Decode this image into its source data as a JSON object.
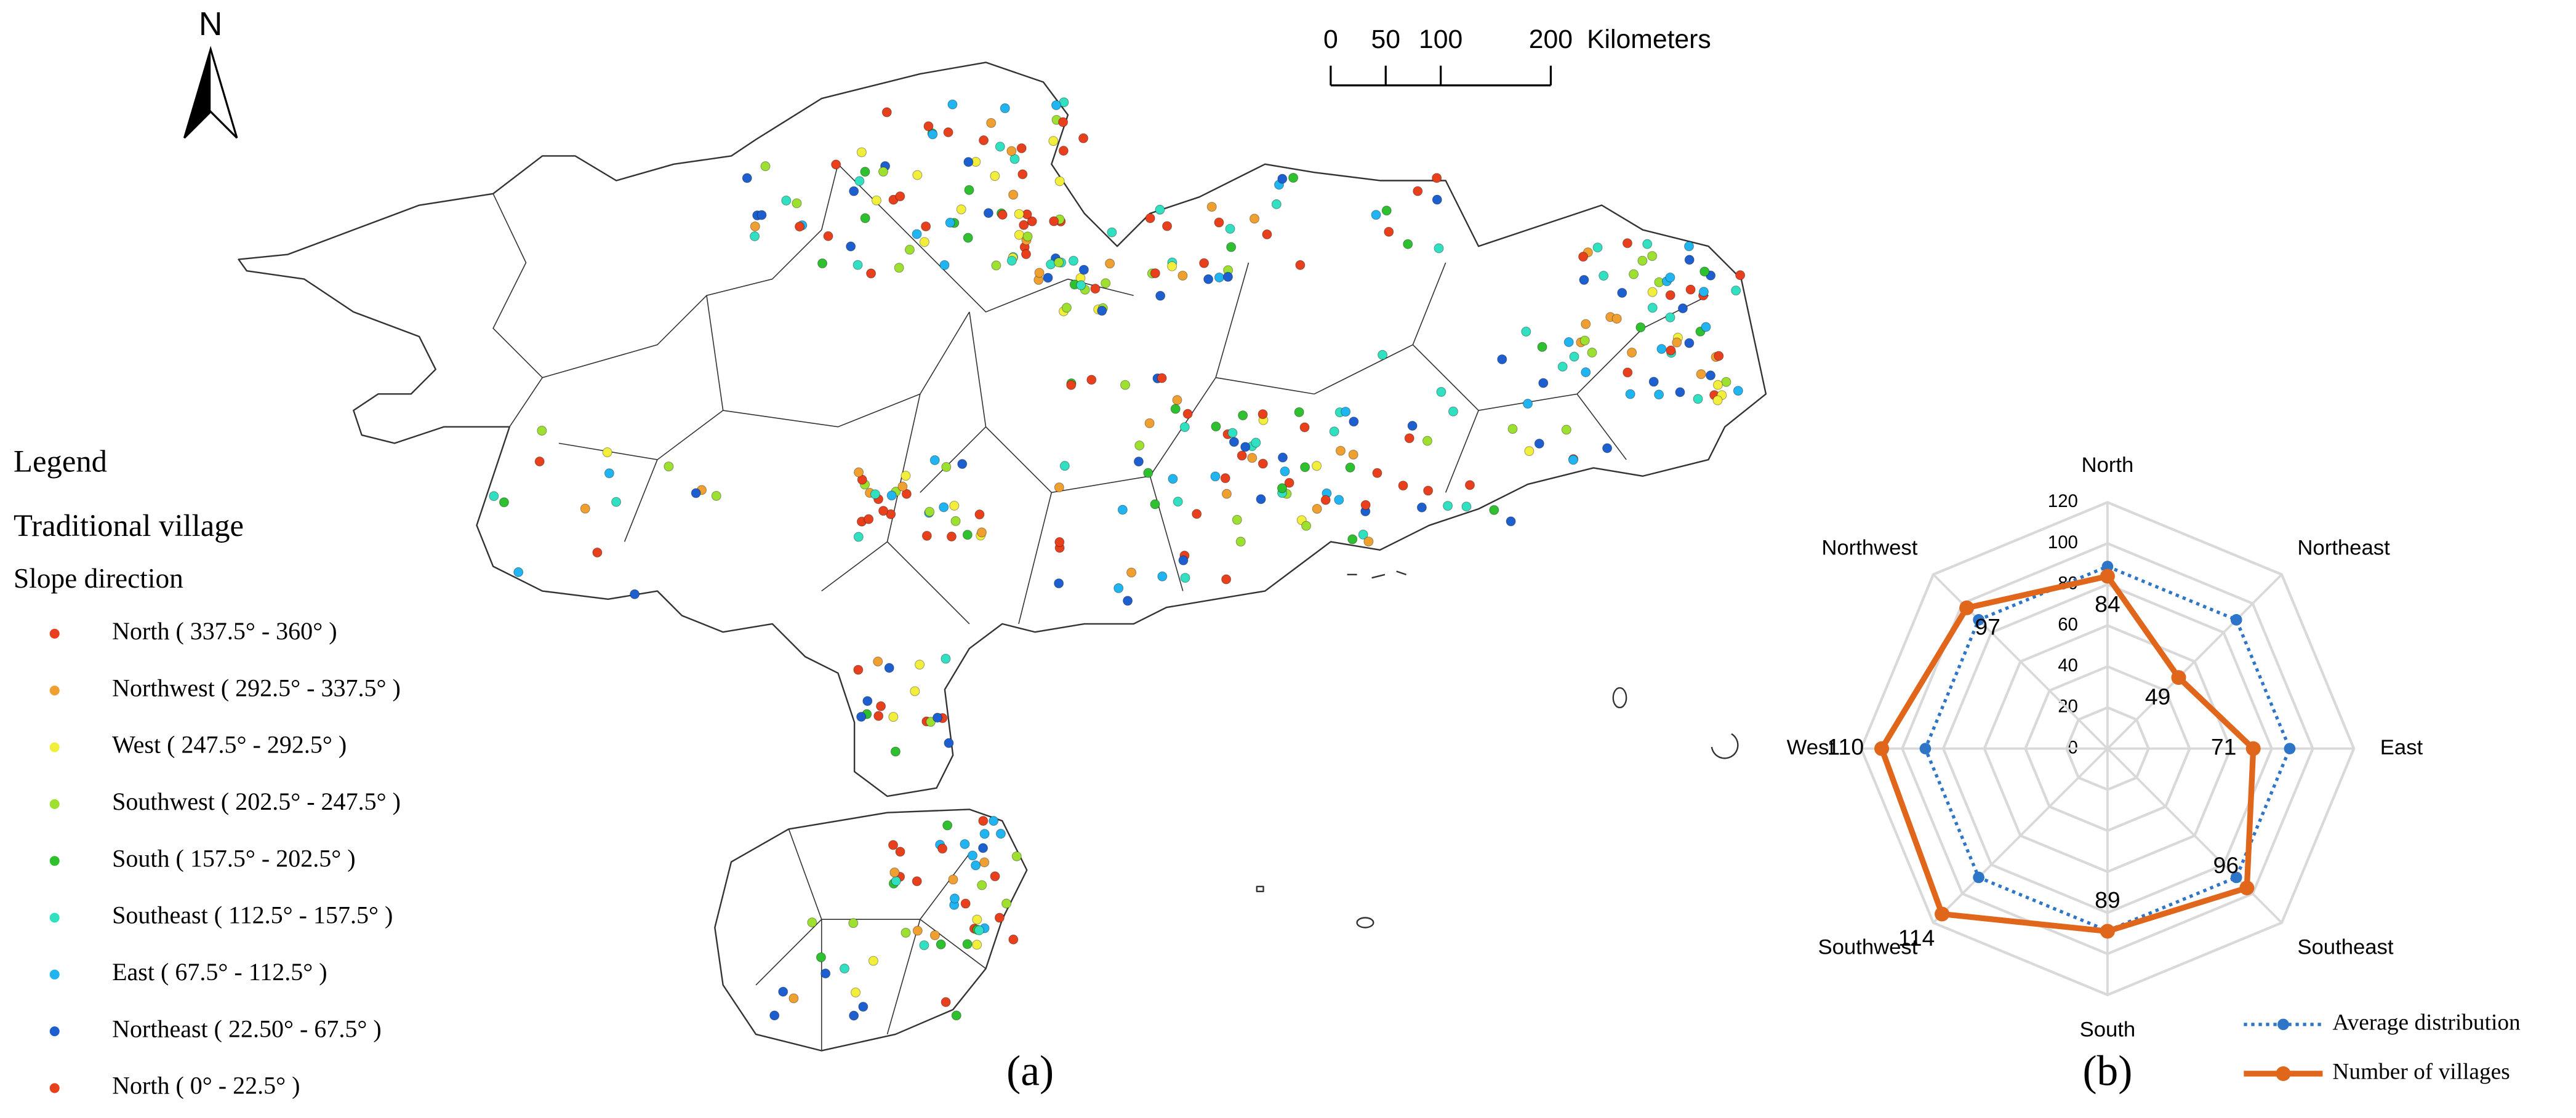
{
  "map": {
    "north_arrow": "N",
    "scale_bar": {
      "ticks": [
        0,
        50,
        100,
        200
      ],
      "unit": "Kilometers"
    },
    "label": "(a)",
    "legend": {
      "title": "Legend",
      "layer": "Traditional village",
      "field": "Slope direction",
      "items": [
        {
          "label": "North ( 337.5° - 360° )",
          "color": "#e8401c"
        },
        {
          "label": "Northwest ( 292.5° - 337.5° )",
          "color": "#f0a030"
        },
        {
          "label": "West ( 247.5° - 292.5° )",
          "color": "#f2ee3c"
        },
        {
          "label": "Southwest ( 202.5° - 247.5° )",
          "color": "#9ee030"
        },
        {
          "label": "South ( 157.5° - 202.5° )",
          "color": "#2ec02e"
        },
        {
          "label": "Southeast ( 112.5° - 157.5° )",
          "color": "#30e0c0"
        },
        {
          "label": "East ( 67.5° - 112.5° )",
          "color": "#20b4f0"
        },
        {
          "label": "Northeast ( 22.50° - 67.5° )",
          "color": "#1e5fd0"
        },
        {
          "label": "North ( 0° - 22.5° )",
          "color": "#e8401c"
        }
      ]
    }
  },
  "chart_data": {
    "type": "radar",
    "label": "(b)",
    "categories": [
      "North",
      "Northeast",
      "East",
      "Southeast",
      "South",
      "Southwest",
      "West",
      "Northwest"
    ],
    "rlim": [
      0,
      120
    ],
    "rticks": [
      0,
      20,
      40,
      60,
      80,
      100,
      120
    ],
    "series": [
      {
        "name": "Average distribution",
        "color": "#2e75c8",
        "style": "dotted",
        "values": [
          88.75,
          88.75,
          88.75,
          88.75,
          88.75,
          88.75,
          88.75,
          88.75
        ]
      },
      {
        "name": "Number of villages",
        "color": "#e0661c",
        "style": "solid",
        "values": [
          84,
          49,
          71,
          96,
          89,
          114,
          110,
          97
        ],
        "show_labels": true
      }
    ]
  }
}
